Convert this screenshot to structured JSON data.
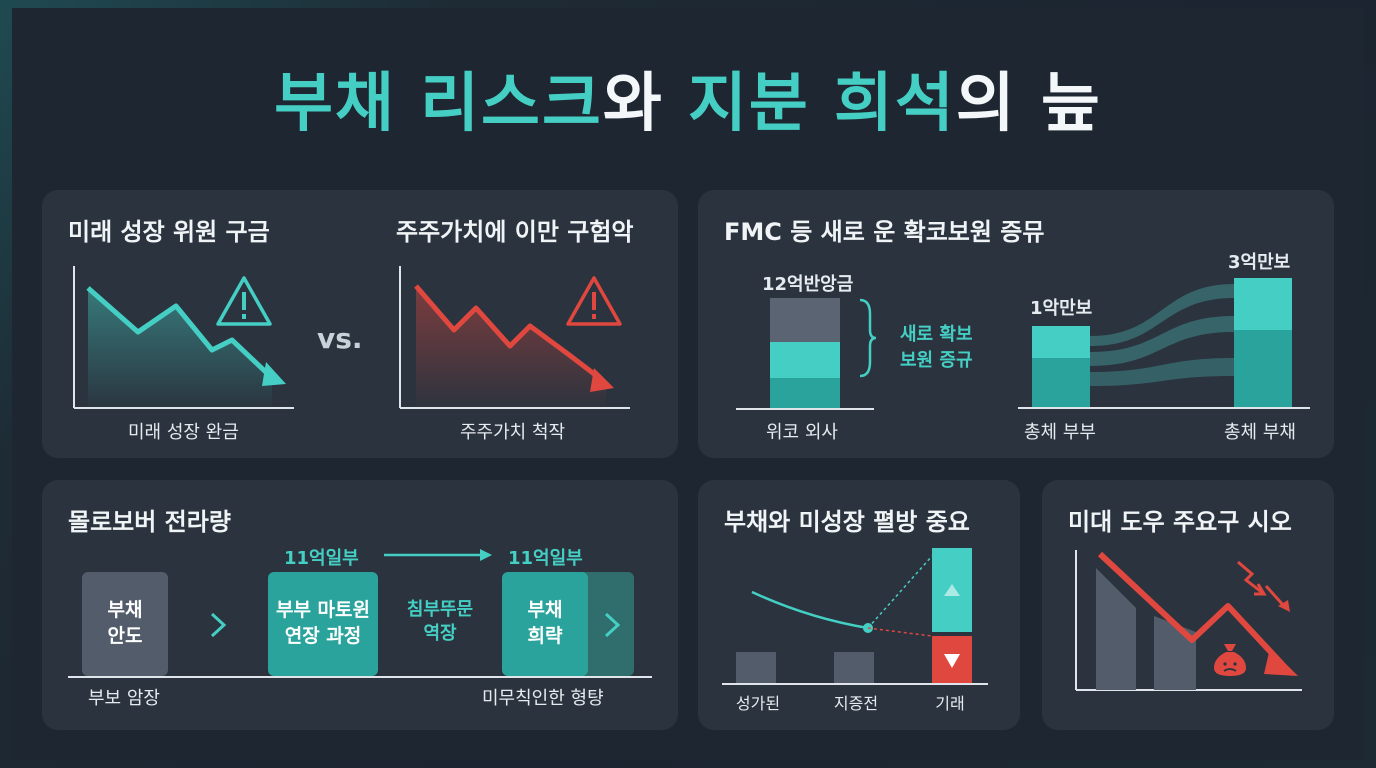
{
  "title": {
    "part1": "부채 리스크",
    "part2": "와 ",
    "part3": "지분 희석",
    "part4": "의 늪"
  },
  "panel1": {
    "left_title": "미래 성장 위원 구금",
    "right_title": "주주가치에 이만 구험악",
    "vs": "vs.",
    "left_caption": "미래 성장 완금",
    "right_caption": "주주가치 척작",
    "colors": {
      "teal": "#45cfc4",
      "red": "#e0483f"
    }
  },
  "panel2": {
    "title": "FMC 등 새로 운 확코보원 증뮤",
    "bar_label": "12억반앙금",
    "brace_label_1": "새로 확보",
    "brace_label_2": "보원 증규",
    "bar_caption": "위코 외사",
    "left_value": "1악만보",
    "right_value": "3억만보",
    "left_caption": "총체 부부",
    "right_caption": "총체 부채"
  },
  "panel3": {
    "title": "몰로보버 전라량",
    "block1": "부채\n안도",
    "block2": "부부 마토윈\n연장 과정",
    "block3": "부채\n희략",
    "mid_label": "침부뚜문\n역장",
    "top_label_1": "11억일부",
    "top_label_2": "11억일부",
    "caption_left": "부보 암장",
    "caption_right": "미무칙인한 형턍"
  },
  "panel4": {
    "title": "부채와 미성장 펼방 중요",
    "x_labels": [
      "성가된",
      "지증전",
      "기래"
    ]
  },
  "panel5": {
    "title": "미대 도우 주요구 시오"
  }
}
